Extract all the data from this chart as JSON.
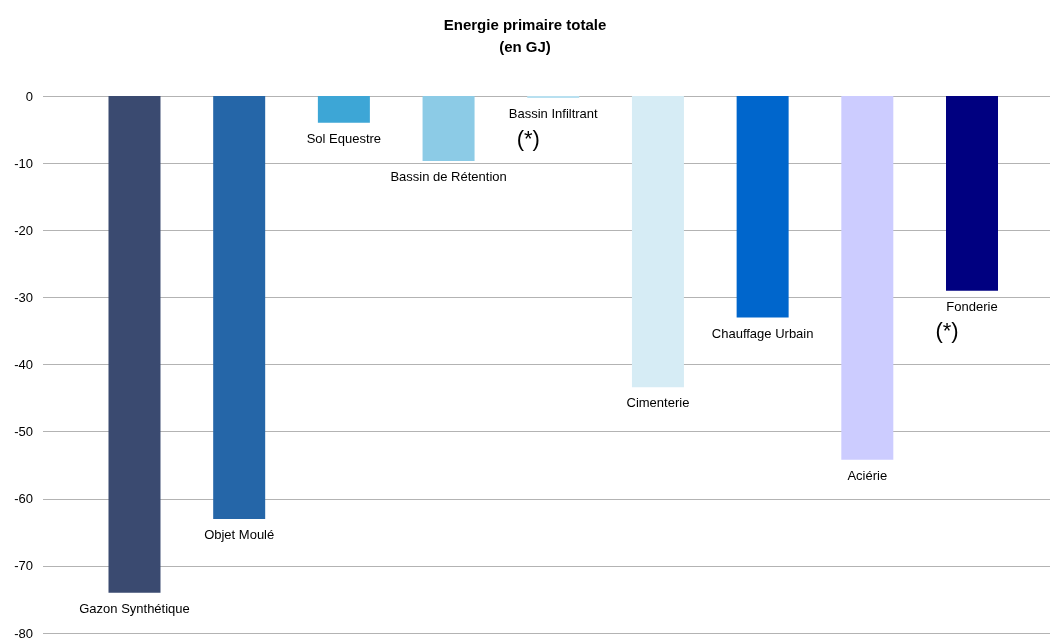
{
  "chart_data": {
    "type": "bar",
    "title": "Energie primaire totale\n(en GJ)",
    "categories": [
      null,
      null,
      null,
      null,
      null,
      null,
      null,
      null,
      null
    ],
    "values": [
      -74,
      -63,
      -4,
      -9.7,
      -0.3,
      -43.4,
      -33,
      -54.2,
      -29
    ],
    "value_labels": [
      "Gazon Synthétique",
      "Objet Moulé",
      "Sol Equestre",
      "Bassin de Rétention",
      "Bassin Infiltrant",
      "Cimenterie",
      "Chauffage Urbain",
      "Aciérie",
      "Fonderie"
    ],
    "colors": [
      "#3a4a70",
      "#2566a8",
      "#3da6d6",
      "#8ccbe6",
      "#b8e0f0",
      "#d6ecf5",
      "#0066cc",
      "#ccccff",
      "#000080"
    ],
    "ylim": [
      -80,
      0
    ],
    "yticks": [
      -80,
      -70,
      -60,
      -50,
      -40,
      -30,
      -20,
      -10,
      0
    ],
    "grid": "y",
    "annotations": [
      {
        "text": "(*)",
        "y": -0.3
      },
      {
        "text": "(*)",
        "y": -29
      }
    ]
  }
}
